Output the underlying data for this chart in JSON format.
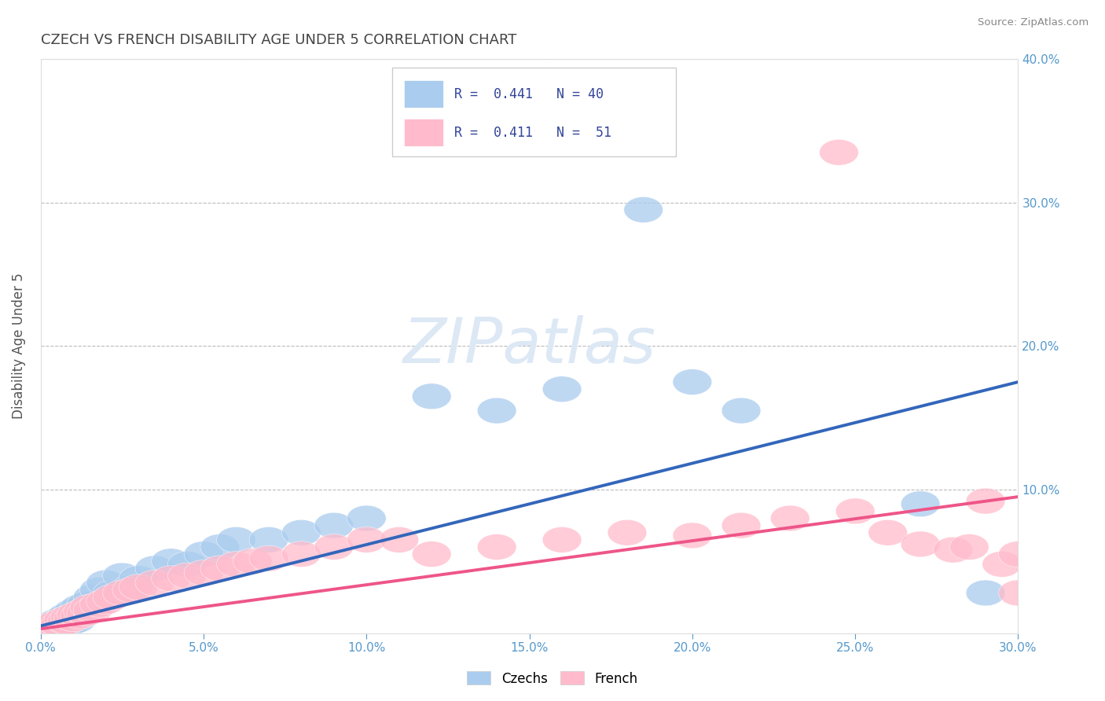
{
  "title": "CZECH VS FRENCH DISABILITY AGE UNDER 5 CORRELATION CHART",
  "source": "Source: ZipAtlas.com",
  "ylabel": "Disability Age Under 5",
  "xlim": [
    0.0,
    0.3
  ],
  "ylim": [
    0.0,
    0.4
  ],
  "xtick_vals": [
    0.0,
    0.05,
    0.1,
    0.15,
    0.2,
    0.25,
    0.3
  ],
  "xtick_labels": [
    "0.0%",
    "5.0%",
    "10.0%",
    "15.0%",
    "20.0%",
    "25.0%",
    "30.0%"
  ],
  "ytick_vals": [
    0.0,
    0.1,
    0.2,
    0.3,
    0.4
  ],
  "ytick_labels": [
    "",
    "10.0%",
    "20.0%",
    "30.0%",
    "40.0%"
  ],
  "czech_color": "#aaccee",
  "french_color": "#ffbbcc",
  "czech_line_color": "#3366bb",
  "french_line_color": "#ee5588",
  "czech_R": 0.441,
  "czech_N": 40,
  "french_R": 0.411,
  "french_N": 51,
  "watermark_text": "ZIPatlas",
  "watermark_color": "#dde8f5",
  "background_color": "#ffffff",
  "grid_color": "#bbbbbb",
  "title_color": "#444444",
  "tick_color": "#5599cc",
  "legend_text_color": "#334499",
  "legend_edge_color": "#cccccc",
  "czech_x": [
    0.001,
    0.002,
    0.003,
    0.004,
    0.005,
    0.006,
    0.007,
    0.008,
    0.009,
    0.01,
    0.011,
    0.012,
    0.013,
    0.014,
    0.015,
    0.016,
    0.018,
    0.02,
    0.022,
    0.025,
    0.028,
    0.03,
    0.035,
    0.04,
    0.045,
    0.05,
    0.055,
    0.06,
    0.07,
    0.08,
    0.09,
    0.1,
    0.12,
    0.14,
    0.16,
    0.185,
    0.2,
    0.215,
    0.27,
    0.29
  ],
  "czech_y": [
    0.002,
    0.004,
    0.006,
    0.003,
    0.008,
    0.005,
    0.01,
    0.012,
    0.007,
    0.015,
    0.009,
    0.018,
    0.013,
    0.02,
    0.016,
    0.025,
    0.03,
    0.035,
    0.028,
    0.04,
    0.032,
    0.038,
    0.045,
    0.05,
    0.048,
    0.055,
    0.06,
    0.065,
    0.065,
    0.07,
    0.075,
    0.08,
    0.165,
    0.155,
    0.17,
    0.295,
    0.175,
    0.155,
    0.09,
    0.028
  ],
  "french_x": [
    0.001,
    0.002,
    0.003,
    0.004,
    0.005,
    0.006,
    0.007,
    0.008,
    0.009,
    0.01,
    0.011,
    0.012,
    0.013,
    0.014,
    0.015,
    0.016,
    0.018,
    0.02,
    0.022,
    0.025,
    0.028,
    0.03,
    0.035,
    0.04,
    0.045,
    0.05,
    0.055,
    0.06,
    0.065,
    0.07,
    0.08,
    0.09,
    0.1,
    0.11,
    0.12,
    0.14,
    0.16,
    0.18,
    0.2,
    0.215,
    0.23,
    0.25,
    0.26,
    0.27,
    0.28,
    0.285,
    0.29,
    0.295,
    0.3,
    0.245,
    0.3
  ],
  "french_y": [
    0.002,
    0.003,
    0.005,
    0.004,
    0.007,
    0.006,
    0.009,
    0.008,
    0.011,
    0.01,
    0.013,
    0.012,
    0.015,
    0.014,
    0.018,
    0.016,
    0.02,
    0.022,
    0.025,
    0.028,
    0.03,
    0.032,
    0.035,
    0.038,
    0.04,
    0.042,
    0.045,
    0.048,
    0.05,
    0.052,
    0.055,
    0.06,
    0.065,
    0.065,
    0.055,
    0.06,
    0.065,
    0.07,
    0.068,
    0.075,
    0.08,
    0.085,
    0.07,
    0.062,
    0.058,
    0.06,
    0.092,
    0.048,
    0.028,
    0.335,
    0.055
  ],
  "czech_line_x": [
    0.0,
    0.3
  ],
  "czech_line_y": [
    0.005,
    0.175
  ],
  "french_line_x": [
    0.0,
    0.3
  ],
  "french_line_y": [
    0.003,
    0.095
  ]
}
